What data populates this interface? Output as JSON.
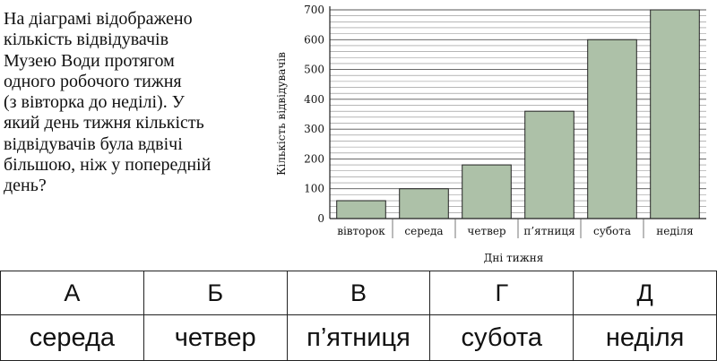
{
  "question": {
    "text": "На діаграмі відображено\nкількість відвідувачів\nМузею Води протягом\nодного робочого тижня\n(з вівторка до неділі). У\nякий день тижня кількість\nвідвідувачів була вдвічі\nбільшою, ніж у попередній\nдень?"
  },
  "chart_data": {
    "type": "bar",
    "categories": [
      "вівторок",
      "середа",
      "четвер",
      "п’ятниця",
      "субота",
      "неділя"
    ],
    "values": [
      60,
      100,
      180,
      360,
      600,
      700
    ],
    "xlabel": "Дні тижня",
    "ylabel": "Кількість відвідувачів",
    "ylim": [
      0,
      700
    ],
    "yticks": [
      0,
      100,
      200,
      300,
      400,
      500,
      600,
      700
    ],
    "grid": true,
    "bar_color": "#adc1a8"
  },
  "answers": {
    "letters": [
      "А",
      "Б",
      "В",
      "Г",
      "Д"
    ],
    "options": [
      "середа",
      "четвер",
      "п’ятниця",
      "субота",
      "неділя"
    ]
  }
}
